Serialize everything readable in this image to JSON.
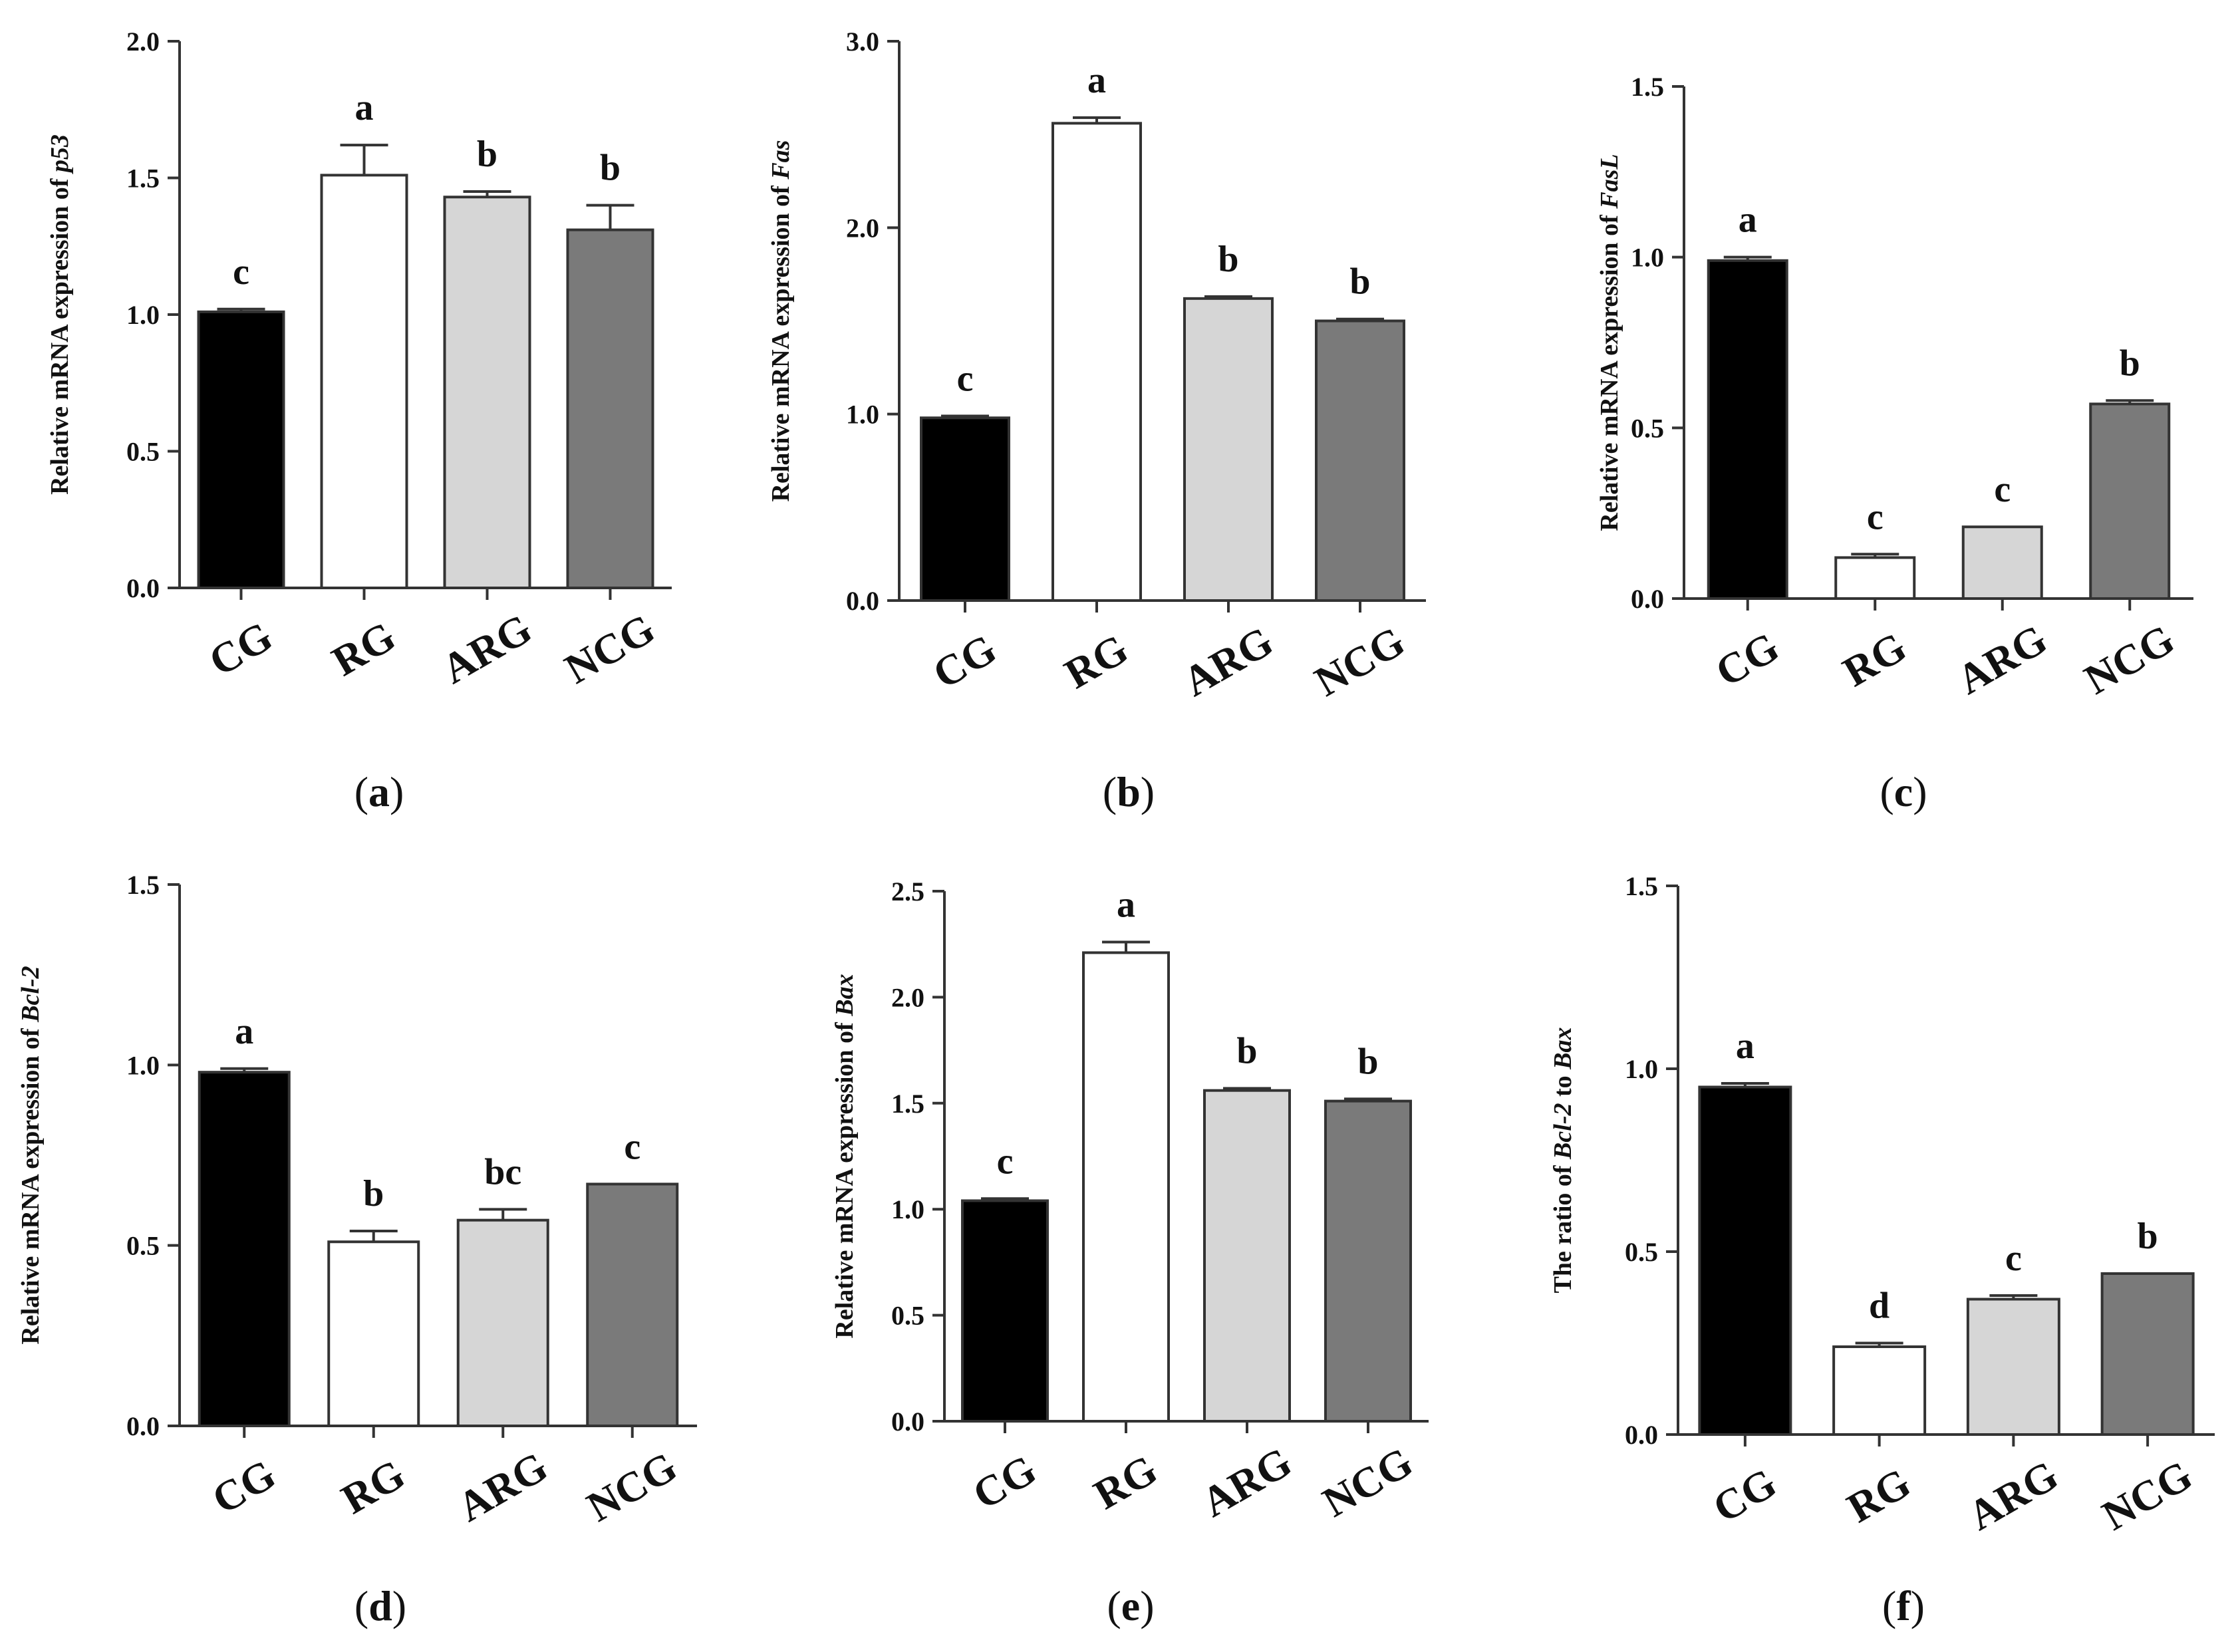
{
  "colors": {
    "CG": "#000000",
    "RG": "#ffffff",
    "ARG": "#d6d6d6",
    "NCG": "#7a7a7a"
  },
  "chart_data": [
    {
      "type": "bar",
      "panel": "(a)",
      "caption_letter": "a",
      "ylabel_prefix": "Relative mRNA expression of ",
      "ylabel_gene": "p53",
      "ylabel_suffix": "",
      "ylim": [
        0,
        2.0
      ],
      "yticks": [
        "0.0",
        "0.5",
        "1.0",
        "1.5",
        "2.0"
      ],
      "categories": [
        "CG",
        "RG",
        "ARG",
        "NCG"
      ],
      "values": [
        1.01,
        1.51,
        1.43,
        1.31
      ],
      "errors": [
        0.01,
        0.11,
        0.02,
        0.09
      ],
      "letters": [
        "c",
        "a",
        "b",
        "b"
      ]
    },
    {
      "type": "bar",
      "panel": "(b)",
      "caption_letter": "b",
      "ylabel_prefix": "Relative mRNA expression of ",
      "ylabel_gene": "Fas",
      "ylabel_suffix": "",
      "ylim": [
        0,
        3.0
      ],
      "yticks": [
        "0.0",
        "1.0",
        "2.0",
        "3.0"
      ],
      "categories": [
        "CG",
        "RG",
        "ARG",
        "NCG"
      ],
      "values": [
        0.98,
        2.56,
        1.62,
        1.5
      ],
      "errors": [
        0.01,
        0.03,
        0.01,
        0.01
      ],
      "letters": [
        "c",
        "a",
        "b",
        "b"
      ]
    },
    {
      "type": "bar",
      "panel": "(c)",
      "caption_letter": "c",
      "ylabel_prefix": "Relative mRNA expression of ",
      "ylabel_gene": "FasL",
      "ylabel_suffix": "",
      "ylim": [
        0,
        1.5
      ],
      "yticks": [
        "0.0",
        "0.5",
        "1.0",
        "1.5"
      ],
      "categories": [
        "CG",
        "RG",
        "ARG",
        "NCG"
      ],
      "values": [
        0.99,
        0.12,
        0.21,
        0.57
      ],
      "errors": [
        0.01,
        0.01,
        0.0,
        0.01
      ],
      "letters": [
        "a",
        "c",
        "c",
        "b"
      ]
    },
    {
      "type": "bar",
      "panel": "(d)",
      "caption_letter": "d",
      "ylabel_prefix": "Relative mRNA expression of ",
      "ylabel_gene": "Bcl-2",
      "ylabel_suffix": "",
      "ylim": [
        0,
        1.5
      ],
      "yticks": [
        "0.0",
        "0.5",
        "1.0",
        "1.5"
      ],
      "categories": [
        "CG",
        "RG",
        "ARG",
        "NCG"
      ],
      "values": [
        0.98,
        0.51,
        0.57,
        0.67
      ],
      "errors": [
        0.01,
        0.03,
        0.03,
        0.0
      ],
      "letters": [
        "a",
        "b",
        "bc",
        "c"
      ]
    },
    {
      "type": "bar",
      "panel": "(e)",
      "caption_letter": "e",
      "ylabel_prefix": "Relative mRNA expression of ",
      "ylabel_gene": "Bax",
      "ylabel_suffix": "",
      "ylim": [
        0,
        2.5
      ],
      "yticks": [
        "0.0",
        "0.5",
        "1.0",
        "1.5",
        "2.0",
        "2.5"
      ],
      "categories": [
        "CG",
        "RG",
        "ARG",
        "NCG"
      ],
      "values": [
        1.04,
        2.21,
        1.56,
        1.51
      ],
      "errors": [
        0.01,
        0.05,
        0.01,
        0.01
      ],
      "letters": [
        "c",
        "a",
        "b",
        "b"
      ]
    },
    {
      "type": "bar",
      "panel": "(f)",
      "caption_letter": "f",
      "ylabel_prefix": "The ratio of ",
      "ylabel_gene": "Bcl-2",
      "ylabel_suffix": " to ",
      "ylabel_gene2": "Bax",
      "ylim": [
        0,
        1.5
      ],
      "yticks": [
        "0.0",
        "0.5",
        "1.0",
        "1.5"
      ],
      "categories": [
        "CG",
        "RG",
        "ARG",
        "NCG"
      ],
      "values": [
        0.95,
        0.24,
        0.37,
        0.44
      ],
      "errors": [
        0.01,
        0.01,
        0.01,
        0.0
      ],
      "letters": [
        "a",
        "d",
        "c",
        "b"
      ]
    }
  ]
}
